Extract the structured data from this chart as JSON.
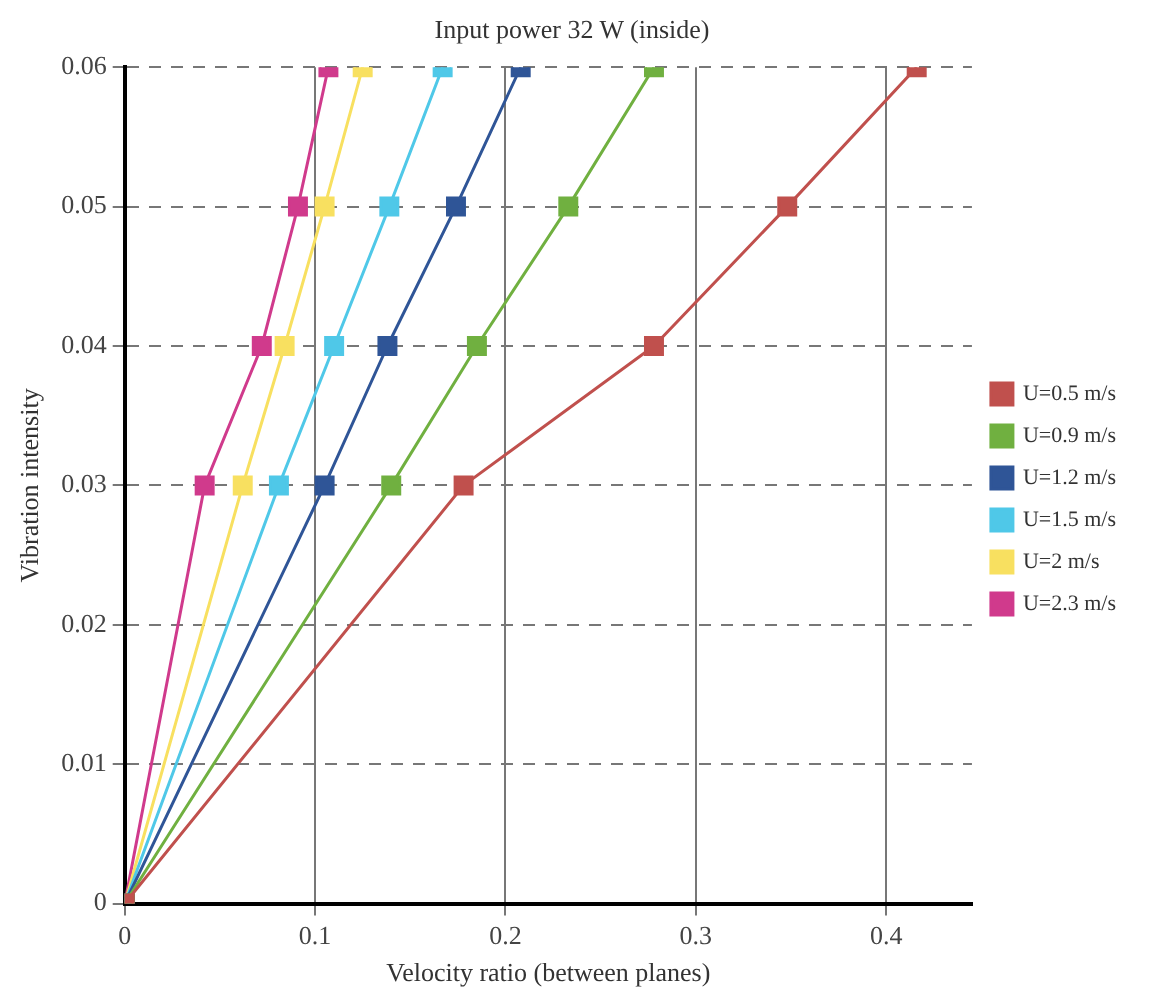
{
  "chart_data": {
    "type": "line",
    "title": "Input power 32 W (inside)",
    "xlabel": "Velocity ratio (between planes)",
    "ylabel": "Vibration intensity",
    "xlim": [
      0,
      0.445
    ],
    "xticks": [
      0,
      0.1,
      0.2,
      0.3,
      0.4
    ],
    "ylim": [
      0,
      0.06
    ],
    "yticks": [
      0,
      0.01,
      0.02,
      0.03,
      0.04,
      0.05,
      0.06
    ],
    "grid": true,
    "legend": "right",
    "marker": "square",
    "line_style": "solid",
    "series": [
      {
        "name": "U=0.5 m/s",
        "color": "#c0504d",
        "x": [
          0,
          0.178,
          0.278,
          0.348,
          0.416
        ],
        "values": [
          0,
          0.03,
          0.04,
          0.05,
          0.06
        ]
      },
      {
        "name": "U=0.9 m/s",
        "color": "#70b040",
        "x": [
          0,
          0.14,
          0.185,
          0.233,
          0.278
        ],
        "values": [
          0,
          0.03,
          0.04,
          0.05,
          0.06
        ]
      },
      {
        "name": "U=1.2 m/s",
        "color": "#2f5597",
        "x": [
          0,
          0.105,
          0.138,
          0.174,
          0.208
        ],
        "values": [
          0,
          0.03,
          0.04,
          0.05,
          0.06
        ]
      },
      {
        "name": "U=1.5 m/s",
        "color": "#4fc8e8",
        "x": [
          0,
          0.081,
          0.11,
          0.139,
          0.167
        ],
        "values": [
          0,
          0.03,
          0.04,
          0.05,
          0.06
        ]
      },
      {
        "name": "U=2 m/s",
        "color": "#f8e060",
        "x": [
          0,
          0.062,
          0.084,
          0.105,
          0.125
        ],
        "values": [
          0,
          0.03,
          0.04,
          0.05,
          0.06
        ]
      },
      {
        "name": "U=2.3 m/s",
        "color": "#d03a8c",
        "x": [
          0,
          0.042,
          0.072,
          0.091,
          0.107
        ],
        "values": [
          0,
          0.03,
          0.04,
          0.05,
          0.06
        ]
      }
    ]
  }
}
